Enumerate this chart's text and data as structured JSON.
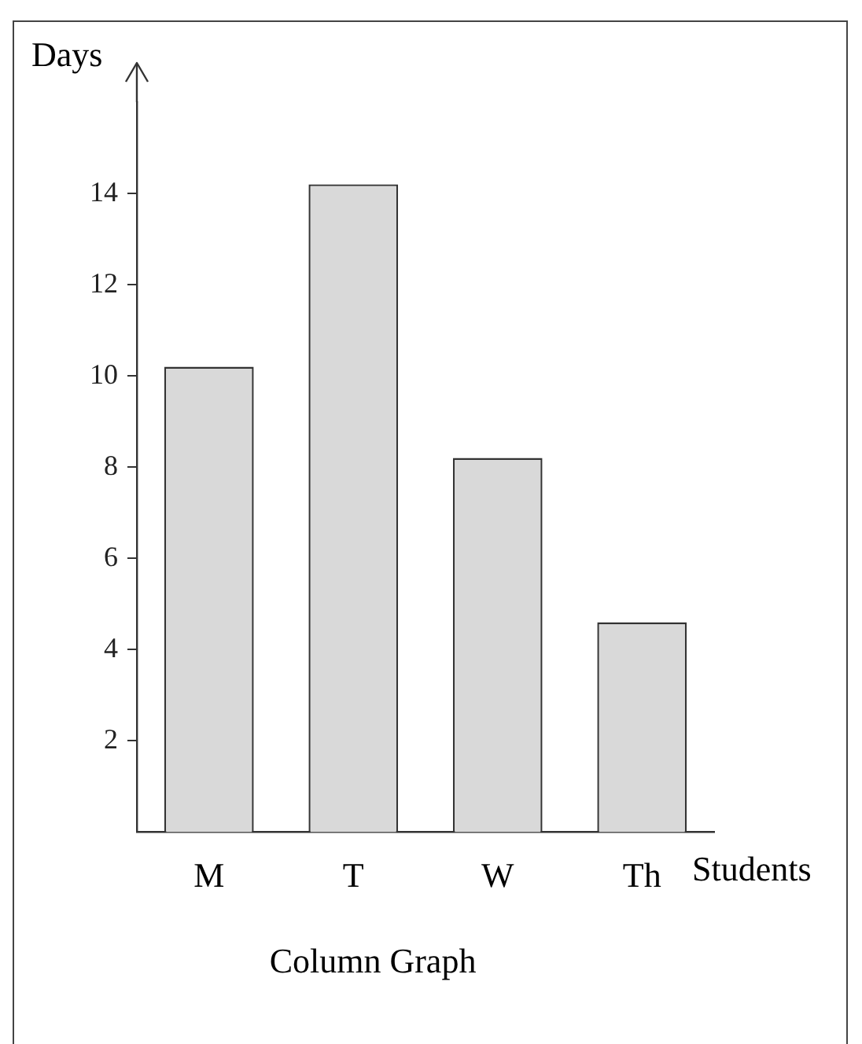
{
  "chart_data": {
    "type": "bar",
    "title": "Column Graph",
    "xlabel": "Students",
    "ylabel": "Days",
    "categories": [
      "M",
      "T",
      "W",
      "Th"
    ],
    "values": [
      10.2,
      14.2,
      8.2,
      4.6
    ],
    "color": "#d9d9d9",
    "ylim": [
      0,
      16
    ],
    "yticks": [
      2,
      4,
      6,
      8,
      10,
      12,
      14
    ]
  }
}
